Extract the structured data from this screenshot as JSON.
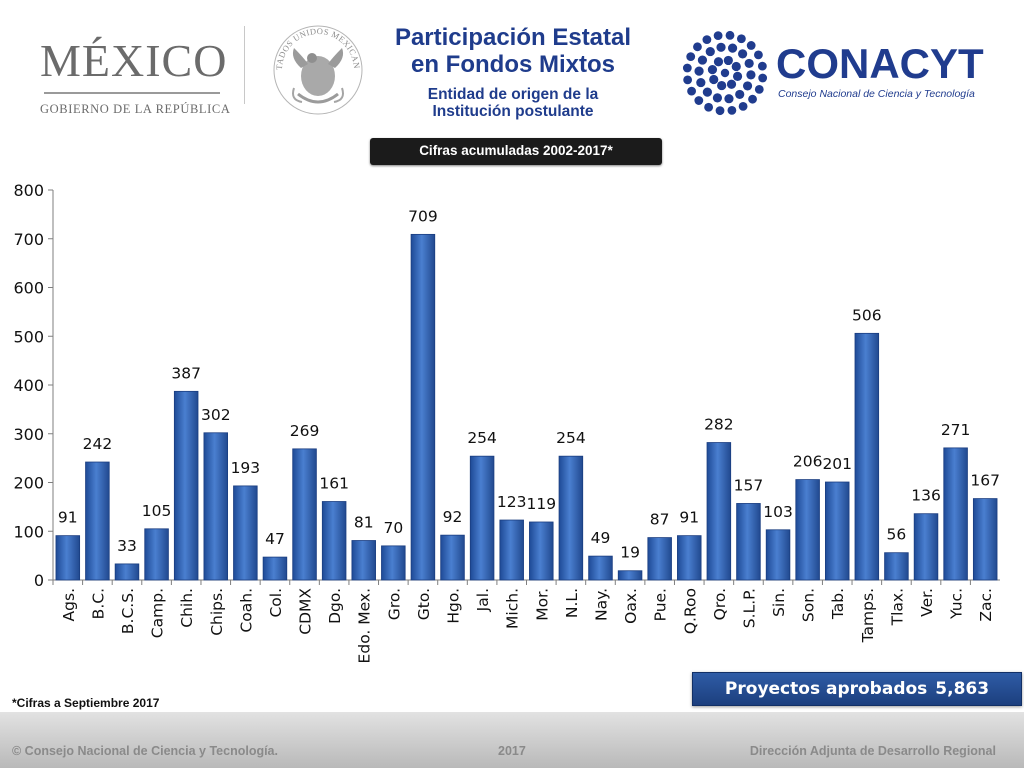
{
  "header": {
    "gov_logo_word": "MÉXICO",
    "gov_logo_sub": "GOBIERNO DE LA REPÚBLICA",
    "seal_text": "ESTADOS UNIDOS MEXICANOS",
    "title_line1": "Participación Estatal",
    "title_line2": "en Fondos Mixtos",
    "subtitle_line1": "Entidad de origen de la",
    "subtitle_line2": "Institución postulante",
    "cifras_badge": "Cifras acumuladas 2002-2017*",
    "conacyt_word": "CONACYT",
    "conacyt_sub": "Consejo Nacional de Ciencia y Tecnología"
  },
  "colors": {
    "title": "#1f3c8c",
    "bar_fill": "#3a6cc0",
    "bar_edge": "#1a3d80",
    "conacyt_blue": "#203c8e"
  },
  "icons": {
    "seal": "mexican-coat-of-arms-seal",
    "conacyt": "conacyt-dot-circle-logo"
  },
  "chart_data": {
    "type": "bar",
    "categories": [
      "Ags.",
      "B.C.",
      "B.C.S.",
      "Camp.",
      "Chih.",
      "Chips.",
      "Coah.",
      "Col.",
      "CDMX",
      "Dgo.",
      "Edo. Mex.",
      "Gro.",
      "Gto.",
      "Hgo.",
      "Jal.",
      "Mich.",
      "Mor.",
      "N.L.",
      "Nay.",
      "Oax.",
      "Pue.",
      "Q.Roo",
      "Qro.",
      "S.L.P.",
      "Sin.",
      "Son.",
      "Tab.",
      "Tamps.",
      "Tlax.",
      "Ver.",
      "Yuc.",
      "Zac."
    ],
    "values": [
      91,
      242,
      33,
      105,
      387,
      302,
      193,
      47,
      269,
      161,
      81,
      70,
      709,
      92,
      254,
      123,
      119,
      254,
      49,
      19,
      87,
      91,
      282,
      157,
      103,
      206,
      201,
      506,
      56,
      136,
      271,
      167
    ],
    "ylim": [
      0,
      800
    ],
    "yticks": [
      0,
      100,
      200,
      300,
      400,
      500,
      600,
      700,
      800
    ],
    "data_labels": true,
    "grid": false,
    "legend": "none"
  },
  "footer": {
    "footnote": "*Cifras a Septiembre 2017",
    "total_label": "Proyectos aprobados",
    "total_value": "5,863",
    "copyright": "© Consejo Nacional de Ciencia y Tecnología.",
    "year": "2017",
    "direction": "Dirección Adjunta de Desarrollo Regional"
  }
}
